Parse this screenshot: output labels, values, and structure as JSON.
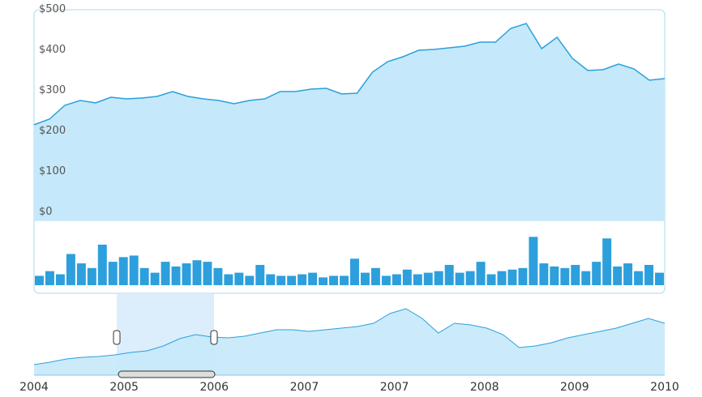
{
  "chart_data": {
    "type": "stock",
    "ylim": [
      0,
      520
    ],
    "yticks": [
      {
        "value": 0,
        "label": "$0"
      },
      {
        "value": 100,
        "label": "$100"
      },
      {
        "value": 200,
        "label": "$200"
      },
      {
        "value": 300,
        "label": "$300"
      },
      {
        "value": 400,
        "label": "$400"
      },
      {
        "value": 500,
        "label": "$500"
      }
    ],
    "price": {
      "color": "#2aa0dc",
      "fill": "#c5e9fa",
      "values": [
        236,
        250,
        284,
        296,
        290,
        304,
        300,
        302,
        306,
        318,
        306,
        300,
        296,
        288,
        296,
        300,
        318,
        318,
        324,
        326,
        312,
        314,
        366,
        392,
        404,
        420,
        422,
        426,
        430,
        440,
        440,
        474,
        486,
        424,
        452,
        400,
        370,
        372,
        386,
        374,
        346,
        350
      ]
    },
    "volume": {
      "color": "#2d9fdc",
      "ylim": [
        0,
        80
      ],
      "values": [
        12,
        18,
        14,
        40,
        28,
        22,
        52,
        30,
        36,
        38,
        22,
        16,
        30,
        24,
        28,
        32,
        30,
        22,
        14,
        16,
        12,
        26,
        14,
        12,
        12,
        14,
        16,
        10,
        12,
        12,
        34,
        16,
        22,
        12,
        14,
        20,
        14,
        16,
        18,
        26,
        16,
        18,
        30,
        14,
        18,
        20,
        22,
        62,
        28,
        24,
        22,
        26,
        18,
        30,
        60,
        24,
        28,
        18,
        26,
        16
      ]
    },
    "navigator": {
      "color": "#2aa0dc",
      "fill": "#c5e9fa",
      "ylim": [
        0,
        100
      ],
      "values": [
        13,
        16,
        20,
        22,
        23,
        25,
        28,
        30,
        36,
        45,
        50,
        47,
        46,
        48,
        52,
        56,
        56,
        54,
        56,
        58,
        60,
        64,
        76,
        82,
        70,
        52,
        64,
        62,
        58,
        50,
        34,
        36,
        40,
        46,
        50,
        54,
        58,
        64,
        70,
        64
      ],
      "categories": [
        "2004",
        "2005",
        "2006",
        "2007",
        "2007",
        "2008",
        "2009",
        "2010"
      ]
    }
  }
}
